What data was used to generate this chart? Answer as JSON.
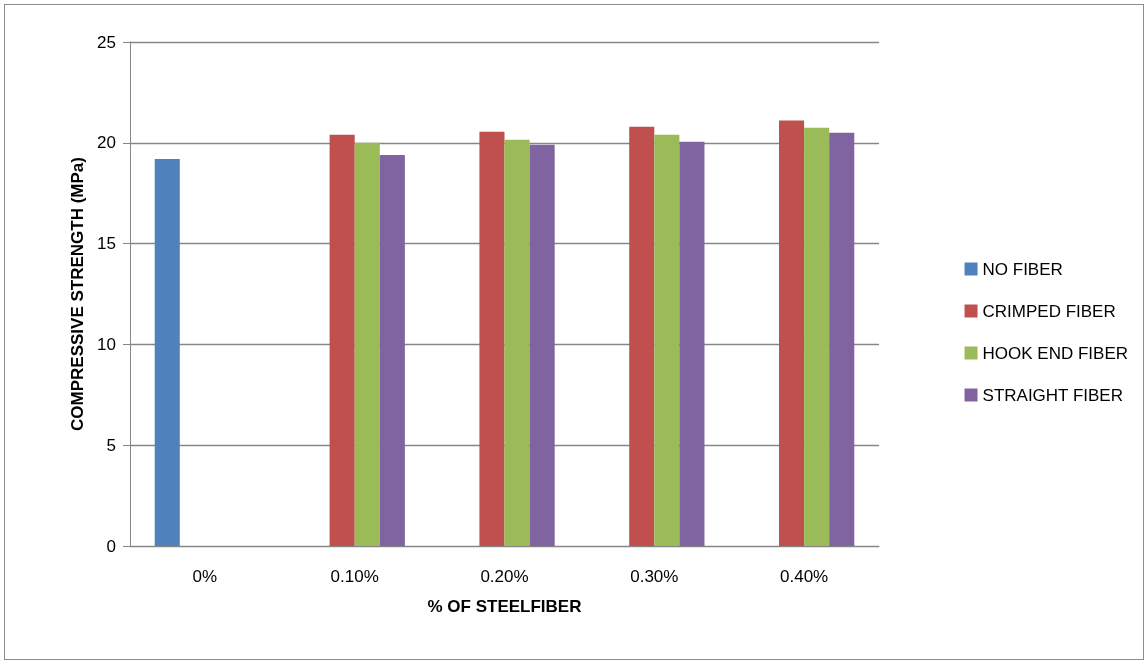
{
  "chart_data": {
    "type": "bar",
    "xlabel": "% OF STEELFIBER",
    "ylabel": "COMPRESSIVE STRENGTH (MPa)",
    "categories": [
      "0%",
      "0.10%",
      "0.20%",
      "0.30%",
      "0.40%"
    ],
    "series": [
      {
        "name": "NO FIBER",
        "color": "#4f81bd",
        "values": [
          19.2,
          null,
          null,
          null,
          null
        ]
      },
      {
        "name": "CRIMPED FIBER",
        "color": "#c0504d",
        "values": [
          null,
          20.4,
          20.55,
          20.8,
          21.1
        ]
      },
      {
        "name": "HOOK END FIBER",
        "color": "#9bbb59",
        "values": [
          null,
          20.0,
          20.15,
          20.4,
          20.75
        ]
      },
      {
        "name": "STRAIGHT FIBER",
        "color": "#8064a2",
        "values": [
          null,
          19.4,
          19.9,
          20.05,
          20.5
        ]
      }
    ],
    "ylim": [
      0,
      25
    ],
    "yticks": [
      0,
      5,
      10,
      15,
      20,
      25
    ],
    "grid": "y",
    "legend": "right"
  }
}
